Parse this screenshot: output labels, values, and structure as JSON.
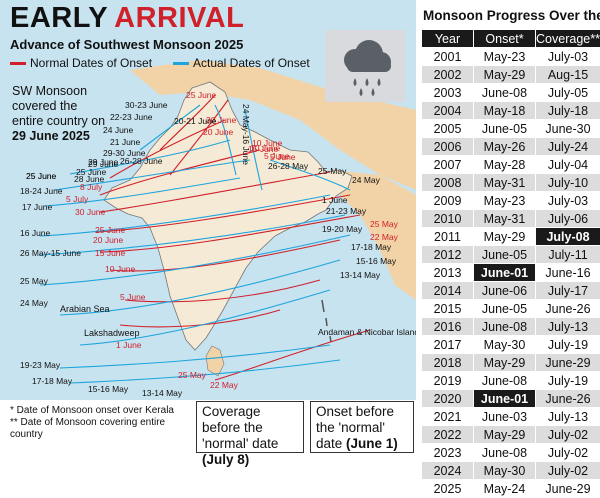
{
  "header": {
    "title_word1": "EARLY",
    "title_word2": "ARRIVAL",
    "subtitle": "Advance of Southwest Monsoon 2025"
  },
  "legend": {
    "normal_label": "Normal Dates of Onset",
    "normal_color": "#d0202a",
    "actual_label": "Actual Dates of Onset",
    "actual_color": "#1fa4dc"
  },
  "note": {
    "line1": "SW Monsoon covered the entire country on",
    "date": "29 June 2025"
  },
  "icon": "rain-cloud-icon",
  "map": {
    "normal_labels": [
      "25 June",
      "30 June",
      "20 June",
      "15 June",
      "10 June",
      "5 June",
      "8 July",
      "5 July",
      "30 June",
      "25 June",
      "20 June",
      "15 June",
      "10 June",
      "5 June",
      "1 June",
      "25 May",
      "22 May",
      "10 June",
      "5 June",
      "25 May",
      "22 May"
    ],
    "actual_labels": [
      "30-23 June",
      "22-23 June",
      "24 June",
      "21 June",
      "20-21 June",
      "29-30 June",
      "24 May-16 June",
      "29 June",
      "26-28 June",
      "18-24 June",
      "17 June",
      "25 June",
      "28 June",
      "26-28 May",
      "25-May",
      "24 May",
      "21-23 May",
      "19-20 May",
      "17-18 May",
      "15-16 May",
      "13-14 May",
      "16 June",
      "26 May-15 June",
      "25 May",
      "24 May",
      "19-23 May",
      "17-18 May",
      "15-16 May",
      "13-14 May",
      "25 June",
      "29 June",
      "25 June",
      "1 June"
    ],
    "place_labels": [
      "Arabian Sea",
      "Lakshadweep",
      "Andaman & Nicobar Island"
    ]
  },
  "footnotes": [
    "* Date of Monsoon onset over Kerala",
    "** Date of Monsoon covering entire country"
  ],
  "callouts": {
    "coverage": {
      "text": "Coverage before the 'normal' date",
      "date": "(July 8)"
    },
    "onset": {
      "text": "Onset before the 'normal' date",
      "date": "(June 1)"
    }
  },
  "table": {
    "title": "Monsoon Progress Over the Years",
    "headers": [
      "Year",
      "Onset*",
      "Coverage**"
    ],
    "rows": [
      {
        "year": "2001",
        "onset": "May-23",
        "coverage": "July-03"
      },
      {
        "year": "2002",
        "onset": "May-29",
        "coverage": "Aug-15"
      },
      {
        "year": "2003",
        "onset": "June-08",
        "coverage": "July-05"
      },
      {
        "year": "2004",
        "onset": "May-18",
        "coverage": "July-18"
      },
      {
        "year": "2005",
        "onset": "June-05",
        "coverage": "June-30"
      },
      {
        "year": "2006",
        "onset": "May-26",
        "coverage": "July-24"
      },
      {
        "year": "2007",
        "onset": "May-28",
        "coverage": "July-04"
      },
      {
        "year": "2008",
        "onset": "May-31",
        "coverage": "July-10"
      },
      {
        "year": "2009",
        "onset": "May-23",
        "coverage": "July-03"
      },
      {
        "year": "2010",
        "onset": "May-31",
        "coverage": "July-06"
      },
      {
        "year": "2011",
        "onset": "May-29",
        "coverage": "July-08"
      },
      {
        "year": "2012",
        "onset": "June-05",
        "coverage": "July-11"
      },
      {
        "year": "2013",
        "onset": "June-01",
        "coverage": "June-16"
      },
      {
        "year": "2014",
        "onset": "June-06",
        "coverage": "July-17"
      },
      {
        "year": "2015",
        "onset": "June-05",
        "coverage": "June-26"
      },
      {
        "year": "2016",
        "onset": "June-08",
        "coverage": "July-13"
      },
      {
        "year": "2017",
        "onset": "May-30",
        "coverage": "July-19"
      },
      {
        "year": "2018",
        "onset": "May-29",
        "coverage": "June-29"
      },
      {
        "year": "2019",
        "onset": "June-08",
        "coverage": "July-19"
      },
      {
        "year": "2020",
        "onset": "June-01",
        "coverage": "June-26"
      },
      {
        "year": "2021",
        "onset": "June-03",
        "coverage": "July-13"
      },
      {
        "year": "2022",
        "onset": "May-29",
        "coverage": "July-02"
      },
      {
        "year": "2023",
        "onset": "June-08",
        "coverage": "July-02"
      },
      {
        "year": "2024",
        "onset": "May-30",
        "coverage": "July-02"
      },
      {
        "year": "2025",
        "onset": "May-24",
        "coverage": "June-29"
      }
    ],
    "highlights": [
      {
        "year": "2011",
        "column": "coverage"
      },
      {
        "year": "2013",
        "column": "onset"
      },
      {
        "year": "2020",
        "column": "onset"
      }
    ]
  },
  "chart_data": {
    "type": "table",
    "title": "Monsoon Progress Over the Years",
    "columns": [
      "Year",
      "Onset*",
      "Coverage**"
    ],
    "rows": [
      [
        "2001",
        "May-23",
        "July-03"
      ],
      [
        "2002",
        "May-29",
        "Aug-15"
      ],
      [
        "2003",
        "June-08",
        "July-05"
      ],
      [
        "2004",
        "May-18",
        "July-18"
      ],
      [
        "2005",
        "June-05",
        "June-30"
      ],
      [
        "2006",
        "May-26",
        "July-24"
      ],
      [
        "2007",
        "May-28",
        "July-04"
      ],
      [
        "2008",
        "May-31",
        "July-10"
      ],
      [
        "2009",
        "May-23",
        "July-03"
      ],
      [
        "2010",
        "May-31",
        "July-06"
      ],
      [
        "2011",
        "May-29",
        "July-08"
      ],
      [
        "2012",
        "June-05",
        "July-11"
      ],
      [
        "2013",
        "June-01",
        "June-16"
      ],
      [
        "2014",
        "June-06",
        "July-17"
      ],
      [
        "2015",
        "June-05",
        "June-26"
      ],
      [
        "2016",
        "June-08",
        "July-13"
      ],
      [
        "2017",
        "May-30",
        "July-19"
      ],
      [
        "2018",
        "May-29",
        "June-29"
      ],
      [
        "2019",
        "June-08",
        "July-19"
      ],
      [
        "2020",
        "June-01",
        "June-26"
      ],
      [
        "2021",
        "June-03",
        "July-13"
      ],
      [
        "2022",
        "May-29",
        "July-02"
      ],
      [
        "2023",
        "June-08",
        "July-02"
      ],
      [
        "2024",
        "May-30",
        "July-02"
      ],
      [
        "2025",
        "May-24",
        "June-29"
      ]
    ]
  }
}
